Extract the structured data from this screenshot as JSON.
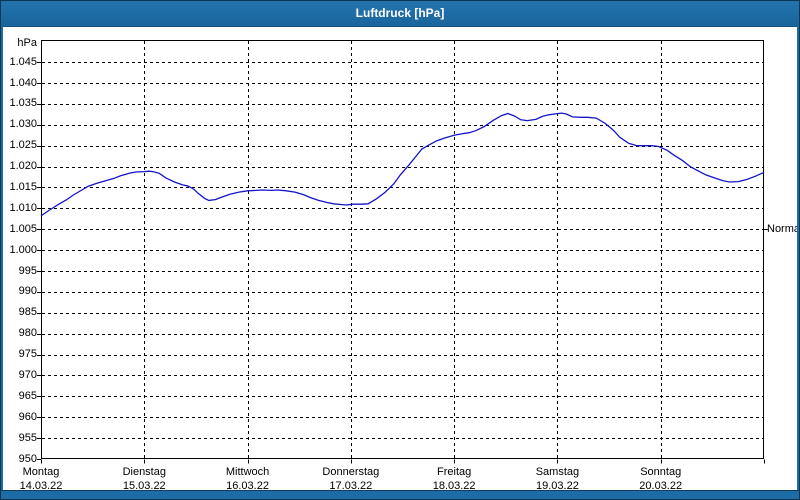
{
  "window": {
    "title": "Luftdruck [hPa]"
  },
  "colors": {
    "titlebar_blue": "#1e6ca5",
    "window_border": "#0b3553",
    "plot_border": "#000000",
    "gridline": "#000000",
    "line_blue": "#1414c8",
    "text": "#000000",
    "background": "#ffffff"
  },
  "chart_data": {
    "type": "line",
    "title": "Luftdruck [hPa]",
    "ylabel": "hPa",
    "unit_label": "hPa",
    "normal_marker": {
      "label": "Normal",
      "value_hpa": 1005
    },
    "ylim": [
      950,
      1050.3
    ],
    "grid": "dashed-black",
    "y_ticks": [
      {
        "value": 1045,
        "label": "1.045"
      },
      {
        "value": 1040,
        "label": "1.040"
      },
      {
        "value": 1035,
        "label": "1.035"
      },
      {
        "value": 1030,
        "label": "1.030"
      },
      {
        "value": 1025,
        "label": "1.025"
      },
      {
        "value": 1020,
        "label": "1.020"
      },
      {
        "value": 1015,
        "label": "1.015"
      },
      {
        "value": 1010,
        "label": "1.010"
      },
      {
        "value": 1005,
        "label": "1.005"
      },
      {
        "value": 1000,
        "label": "1.000"
      },
      {
        "value": 995,
        "label": "995"
      },
      {
        "value": 990,
        "label": "990"
      },
      {
        "value": 985,
        "label": "985"
      },
      {
        "value": 980,
        "label": "980"
      },
      {
        "value": 975,
        "label": "975"
      },
      {
        "value": 970,
        "label": "970"
      },
      {
        "value": 965,
        "label": "965"
      },
      {
        "value": 960,
        "label": "960"
      },
      {
        "value": 955,
        "label": "955"
      },
      {
        "value": 950,
        "label": "950"
      }
    ],
    "x_days": [
      {
        "name": "Montag",
        "date": "14.03.22"
      },
      {
        "name": "Dienstag",
        "date": "15.03.22"
      },
      {
        "name": "Mittwoch",
        "date": "16.03.22"
      },
      {
        "name": "Donnerstag",
        "date": "17.03.22"
      },
      {
        "name": "Freitag",
        "date": "18.03.22"
      },
      {
        "name": "Samstag",
        "date": "19.03.22"
      },
      {
        "name": "Sonntag",
        "date": "20.03.22"
      }
    ],
    "x_range_hours": [
      0,
      168
    ],
    "series": [
      {
        "name": "Luftdruck",
        "points_hours_hpa": [
          [
            0,
            1008.2
          ],
          [
            2,
            1009.6
          ],
          [
            4,
            1010.9
          ],
          [
            6,
            1012.1
          ],
          [
            7.5,
            1013.2
          ],
          [
            9.5,
            1014.4
          ],
          [
            11,
            1015.3
          ],
          [
            13,
            1016.0
          ],
          [
            15,
            1016.6
          ],
          [
            17,
            1017.2
          ],
          [
            18.5,
            1017.8
          ],
          [
            20.5,
            1018.4
          ],
          [
            22,
            1018.7
          ],
          [
            24,
            1018.8
          ],
          [
            25,
            1018.9
          ],
          [
            26,
            1018.8
          ],
          [
            27.5,
            1018.4
          ],
          [
            29,
            1017.3
          ],
          [
            31,
            1016.3
          ],
          [
            33,
            1015.6
          ],
          [
            34,
            1015.4
          ],
          [
            35.5,
            1014.6
          ],
          [
            36.5,
            1013.6
          ],
          [
            38,
            1012.4
          ],
          [
            39,
            1011.9
          ],
          [
            40.5,
            1012.1
          ],
          [
            42,
            1012.7
          ],
          [
            44,
            1013.4
          ],
          [
            46,
            1013.9
          ],
          [
            48,
            1014.2
          ],
          [
            50,
            1014.3
          ],
          [
            51.5,
            1014.4
          ],
          [
            53.5,
            1014.3
          ],
          [
            55,
            1014.4
          ],
          [
            57,
            1014.2
          ],
          [
            59,
            1013.9
          ],
          [
            61,
            1013.3
          ],
          [
            62.5,
            1012.6
          ],
          [
            64.5,
            1011.9
          ],
          [
            66.5,
            1011.4
          ],
          [
            68,
            1011.1
          ],
          [
            70,
            1010.9
          ],
          [
            71,
            1010.8
          ],
          [
            72.5,
            1011.0
          ],
          [
            74.5,
            1011.0
          ],
          [
            76,
            1011.1
          ],
          [
            78,
            1012.3
          ],
          [
            80,
            1013.9
          ],
          [
            82,
            1015.9
          ],
          [
            83.5,
            1018.0
          ],
          [
            85.5,
            1020.4
          ],
          [
            87,
            1022.3
          ],
          [
            88.5,
            1024.2
          ],
          [
            90,
            1025.1
          ],
          [
            92,
            1026.2
          ],
          [
            94,
            1026.9
          ],
          [
            96,
            1027.5
          ],
          [
            97.5,
            1027.8
          ],
          [
            99.5,
            1028.1
          ],
          [
            101,
            1028.6
          ],
          [
            103,
            1029.6
          ],
          [
            105,
            1031.0
          ],
          [
            107,
            1032.2
          ],
          [
            108.5,
            1032.7
          ],
          [
            110,
            1032.1
          ],
          [
            111.5,
            1031.2
          ],
          [
            113,
            1031.0
          ],
          [
            115,
            1031.3
          ],
          [
            116.5,
            1032.0
          ],
          [
            118,
            1032.4
          ],
          [
            119.5,
            1032.6
          ],
          [
            121,
            1032.8
          ],
          [
            122,
            1032.6
          ],
          [
            123.5,
            1031.9
          ],
          [
            125.5,
            1031.8
          ],
          [
            127,
            1031.8
          ],
          [
            129,
            1031.6
          ],
          [
            131,
            1030.4
          ],
          [
            133,
            1028.7
          ],
          [
            134.5,
            1027.0
          ],
          [
            136.5,
            1025.6
          ],
          [
            138.5,
            1025.0
          ],
          [
            140,
            1025.0
          ],
          [
            142,
            1025.0
          ],
          [
            143.5,
            1024.8
          ],
          [
            145.5,
            1023.9
          ],
          [
            147,
            1022.8
          ],
          [
            149,
            1021.5
          ],
          [
            151,
            1019.9
          ],
          [
            153,
            1018.8
          ],
          [
            154.5,
            1018.0
          ],
          [
            156.5,
            1017.3
          ],
          [
            158.5,
            1016.6
          ],
          [
            160,
            1016.3
          ],
          [
            162,
            1016.4
          ],
          [
            164,
            1016.9
          ],
          [
            166,
            1017.7
          ],
          [
            168,
            1018.6
          ]
        ]
      }
    ]
  }
}
